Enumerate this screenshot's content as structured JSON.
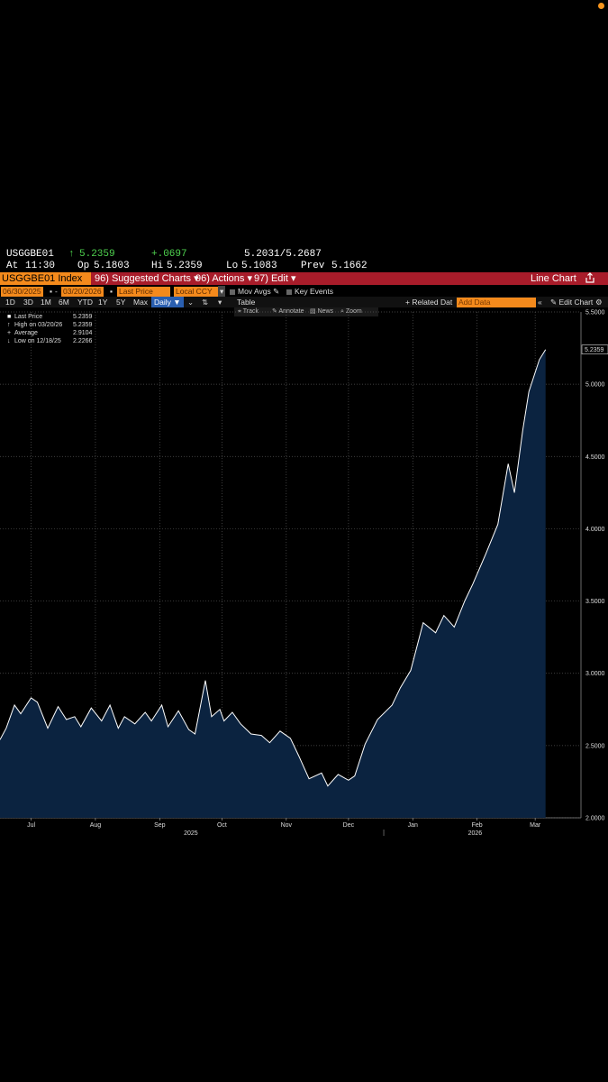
{
  "quote": {
    "ticker": "USGGBE01",
    "arrow": "↑",
    "last": "5.2359",
    "change": "+.0697",
    "bid_ask": "5.2031/5.2687",
    "at_label": "At",
    "time": "11:30",
    "op_label": "Op",
    "open": "5.1803",
    "hi_label": "Hi",
    "high": "5.2359",
    "lo_label": "Lo",
    "low": "5.1083",
    "prev_label": "Prev",
    "prev": "5.1662"
  },
  "command_bar": {
    "security": "USGGBE01 Index",
    "suggested_charts": "96) Suggested Charts ▾",
    "actions": "96) Actions ▾",
    "edit": "97) Edit ▾",
    "chart_type": "Line Chart",
    "share_icon": "share-icon"
  },
  "toolbar": {
    "start_date": "06/30/2025",
    "end_date": "03/20/2026",
    "field": "Last Price",
    "currency": "Local CCY",
    "mov_avgs": "Mov Avgs",
    "key_events": "Key Events",
    "periods": [
      "1D",
      "3D",
      "1M",
      "6M",
      "YTD",
      "1Y",
      "5Y",
      "Max"
    ],
    "frequency": "Daily ▼",
    "table": "Table",
    "related_data": "+ Related Dat",
    "add_data": "Add Data",
    "edit_chart": "Edit Chart"
  },
  "chart_tools": {
    "track": "Track",
    "annotate": "Annotate",
    "news": "News",
    "zoom": "Zoom"
  },
  "legend": [
    {
      "label": "Last Price",
      "value": "5.2359"
    },
    {
      "label": "High on 03/20/26",
      "value": "5.2359"
    },
    {
      "label": "Average",
      "value": "2.9104"
    },
    {
      "label": "Low on 12/18/25",
      "value": "2.2266"
    }
  ],
  "colors": {
    "background": "#000000",
    "area_fill": "#0b2340",
    "line": "#ffffff",
    "command_bar": "#a81c2a",
    "accent_orange": "#f48a1c"
  },
  "chart_data": {
    "type": "area",
    "title": "",
    "xlabel": "",
    "ylabel": "",
    "ylim": [
      2.0,
      5.5
    ],
    "y_ticks": [
      "2.0000",
      "2.5000",
      "3.0000",
      "3.5000",
      "4.0000",
      "4.5000",
      "5.0000",
      "5.5000"
    ],
    "x_ticks": [
      "Jul",
      "Aug",
      "Sep",
      "Oct",
      "Nov",
      "Dec",
      "Jan",
      "Feb",
      "Mar"
    ],
    "year_labels": [
      "2025",
      "2026"
    ],
    "last_price_label": "5.2359",
    "grid": true,
    "series": [
      {
        "x": [
          "2025-06-30",
          "2025-07-03",
          "2025-07-07",
          "2025-07-10",
          "2025-07-15",
          "2025-07-18",
          "2025-07-23",
          "2025-07-28",
          "2025-08-01",
          "2025-08-05",
          "2025-08-08",
          "2025-08-13",
          "2025-08-18",
          "2025-08-22",
          "2025-08-26",
          "2025-08-29",
          "2025-09-03",
          "2025-09-08",
          "2025-09-11",
          "2025-09-16",
          "2025-09-19",
          "2025-09-24",
          "2025-09-29",
          "2025-10-02",
          "2025-10-07",
          "2025-10-10",
          "2025-10-14",
          "2025-10-16",
          "2025-10-20",
          "2025-10-24",
          "2025-10-29",
          "2025-11-03",
          "2025-11-07",
          "2025-11-12",
          "2025-11-17",
          "2025-11-21",
          "2025-11-26",
          "2025-12-02",
          "2025-12-05",
          "2025-12-10",
          "2025-12-15",
          "2025-12-18",
          "2025-12-23",
          "2025-12-29",
          "2026-01-05",
          "2026-01-09",
          "2026-01-14",
          "2026-01-20",
          "2026-01-26",
          "2026-01-30",
          "2026-02-04",
          "2026-02-09",
          "2026-02-13",
          "2026-02-19",
          "2026-02-25",
          "2026-03-02",
          "2026-03-05",
          "2026-03-09",
          "2026-03-12",
          "2026-03-17",
          "2026-03-20"
        ],
        "y": [
          2.54,
          2.62,
          2.78,
          2.72,
          2.83,
          2.8,
          2.62,
          2.77,
          2.68,
          2.7,
          2.63,
          2.76,
          2.67,
          2.78,
          2.62,
          2.7,
          2.65,
          2.73,
          2.67,
          2.78,
          2.63,
          2.74,
          2.61,
          2.58,
          2.95,
          2.7,
          2.75,
          2.67,
          2.73,
          2.65,
          2.58,
          2.57,
          2.52,
          2.6,
          2.55,
          2.43,
          2.27,
          2.31,
          2.22,
          2.3,
          2.26,
          2.29,
          2.51,
          2.68,
          2.78,
          2.9,
          3.02,
          3.35,
          3.28,
          3.4,
          3.32,
          3.5,
          3.62,
          3.82,
          4.03,
          4.45,
          4.25,
          4.68,
          4.95,
          5.17,
          5.24
        ]
      }
    ]
  }
}
